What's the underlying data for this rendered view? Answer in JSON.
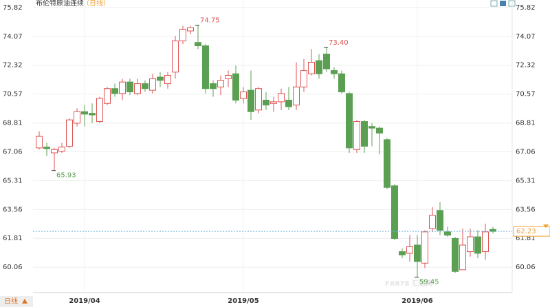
{
  "chart_data": {
    "type": "candlestick",
    "title": "布伦特原油连续",
    "subtitle": "（日线）",
    "period_button": "日线",
    "watermark": "FX678 汇通网",
    "categories": [
      null,
      null,
      null,
      null,
      null,
      null,
      "2019/04",
      null,
      null,
      null,
      null,
      null,
      null,
      null,
      null,
      null,
      null,
      null,
      null,
      null,
      null,
      null,
      null,
      null,
      null,
      null,
      null,
      "2019/05",
      null,
      null,
      null,
      null,
      null,
      null,
      null,
      null,
      null,
      null,
      null,
      null,
      null,
      null,
      null,
      null,
      null,
      null,
      null,
      null,
      null,
      null,
      "2019/06",
      null,
      null,
      null,
      null,
      null,
      null,
      null,
      null,
      null,
      null
    ],
    "open": [
      67.3,
      67.35,
      67.0,
      67.1,
      67.4,
      68.8,
      69.5,
      69.4,
      68.9,
      70.0,
      70.9,
      70.6,
      71.3,
      70.6,
      71.2,
      70.8,
      71.6,
      71.2,
      71.9,
      73.8,
      74.4,
      73.7,
      73.5,
      71.2,
      71.0,
      71.5,
      71.8,
      70.3,
      70.8,
      69.6,
      70.2,
      70.0,
      70.1,
      70.2,
      69.9,
      71.0,
      71.8,
      72.6,
      73.0,
      72.0,
      71.8,
      70.6,
      67.2,
      68.9,
      68.6,
      68.5,
      67.8,
      65.0,
      61.0,
      60.9,
      61.4,
      60.3,
      62.4,
      63.5,
      62.2,
      61.8,
      59.9,
      61.0,
      61.9,
      61.0,
      62.35
    ],
    "high": [
      68.3,
      67.6,
      67.3,
      67.6,
      69.1,
      69.7,
      69.9,
      70.0,
      70.4,
      71.0,
      71.2,
      71.5,
      71.5,
      71.5,
      71.4,
      71.8,
      71.9,
      71.9,
      74.1,
      74.7,
      74.7,
      74.75,
      73.6,
      71.4,
      71.7,
      72.0,
      72.3,
      71.0,
      72.0,
      71.0,
      70.7,
      70.4,
      70.9,
      71.0,
      72.5,
      72.7,
      73.3,
      73.0,
      73.4,
      72.2,
      72.0,
      70.7,
      69.0,
      69.0,
      68.8,
      68.6,
      67.9,
      65.1,
      61.2,
      62.0,
      62.0,
      62.3,
      63.7,
      64.0,
      62.5,
      61.9,
      62.4,
      62.4,
      62.3,
      62.7,
      62.5
    ],
    "low": [
      67.2,
      66.8,
      65.93,
      67.0,
      67.3,
      68.6,
      68.6,
      68.8,
      68.8,
      69.9,
      70.4,
      70.2,
      70.5,
      70.5,
      70.7,
      70.6,
      71.0,
      70.9,
      71.5,
      73.6,
      74.2,
      73.3,
      70.6,
      70.4,
      70.5,
      71.0,
      70.0,
      70.0,
      69.0,
      69.4,
      69.6,
      69.5,
      69.6,
      69.6,
      69.6,
      70.7,
      71.7,
      71.5,
      71.9,
      71.5,
      70.6,
      67.0,
      67.0,
      67.0,
      67.4,
      66.9,
      64.8,
      61.7,
      60.6,
      60.4,
      59.45,
      60.0,
      62.2,
      62.0,
      61.9,
      59.7,
      59.9,
      60.7,
      60.6,
      60.5,
      62.1
    ],
    "close": [
      68.0,
      67.25,
      67.2,
      67.35,
      69.0,
      69.5,
      69.35,
      69.3,
      70.3,
      70.9,
      70.6,
      71.3,
      70.7,
      71.2,
      70.9,
      71.5,
      71.4,
      71.7,
      73.8,
      74.5,
      74.6,
      73.5,
      70.9,
      70.9,
      71.4,
      71.7,
      70.2,
      70.7,
      69.5,
      70.9,
      69.9,
      70.1,
      70.6,
      69.8,
      71.0,
      72.0,
      72.5,
      71.8,
      72.1,
      71.8,
      70.7,
      67.3,
      68.9,
      67.4,
      68.5,
      68.2,
      64.9,
      61.8,
      60.8,
      61.3,
      60.4,
      62.2,
      63.2,
      62.3,
      62.0,
      59.8,
      61.4,
      61.9,
      60.9,
      62.2,
      62.23
    ],
    "annotations": [
      "74.75",
      "73.40",
      "65.93",
      "59.45"
    ],
    "up_color": "#e05252",
    "down_color": "#5b9f52",
    "last_color": "#f0a030",
    "ylim": [
      58.6,
      76.28
    ],
    "yticks": [
      75.82,
      74.07,
      72.32,
      70.57,
      68.81,
      67.06,
      65.31,
      63.56,
      61.81,
      60.06
    ],
    "grid": true
  }
}
